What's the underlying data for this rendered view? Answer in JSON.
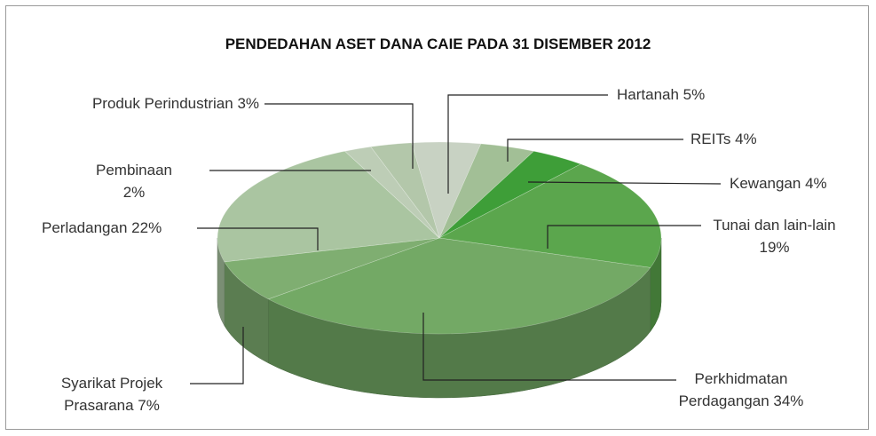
{
  "chart_data": {
    "type": "pie3d",
    "title": "PENDEDAHAN ASET DANA CAIE PADA 31 DISEMBER 2012",
    "categories": [
      "Hartanah",
      "REITs",
      "Kewangan",
      "Tunai dan lain-lain",
      "Perkhidmatan Perdagangan",
      "Syarikat Projek Prasarana",
      "Perladangan",
      "Pembinaan",
      "Produk Perindustrian"
    ],
    "values": [
      5,
      4,
      4,
      19,
      34,
      7,
      22,
      2,
      3
    ],
    "value_labels": [
      "5%",
      "4%",
      "4%",
      "19%",
      "34%",
      "7%",
      "22%",
      "2%",
      "3%"
    ],
    "colors": [
      "#c8d2c3",
      "#a2bf96",
      "#3e9e38",
      "#5ba64d",
      "#73a965",
      "#7fae71",
      "#aac5a1",
      "#bdcdb6",
      "#b3c7aa"
    ]
  }
}
